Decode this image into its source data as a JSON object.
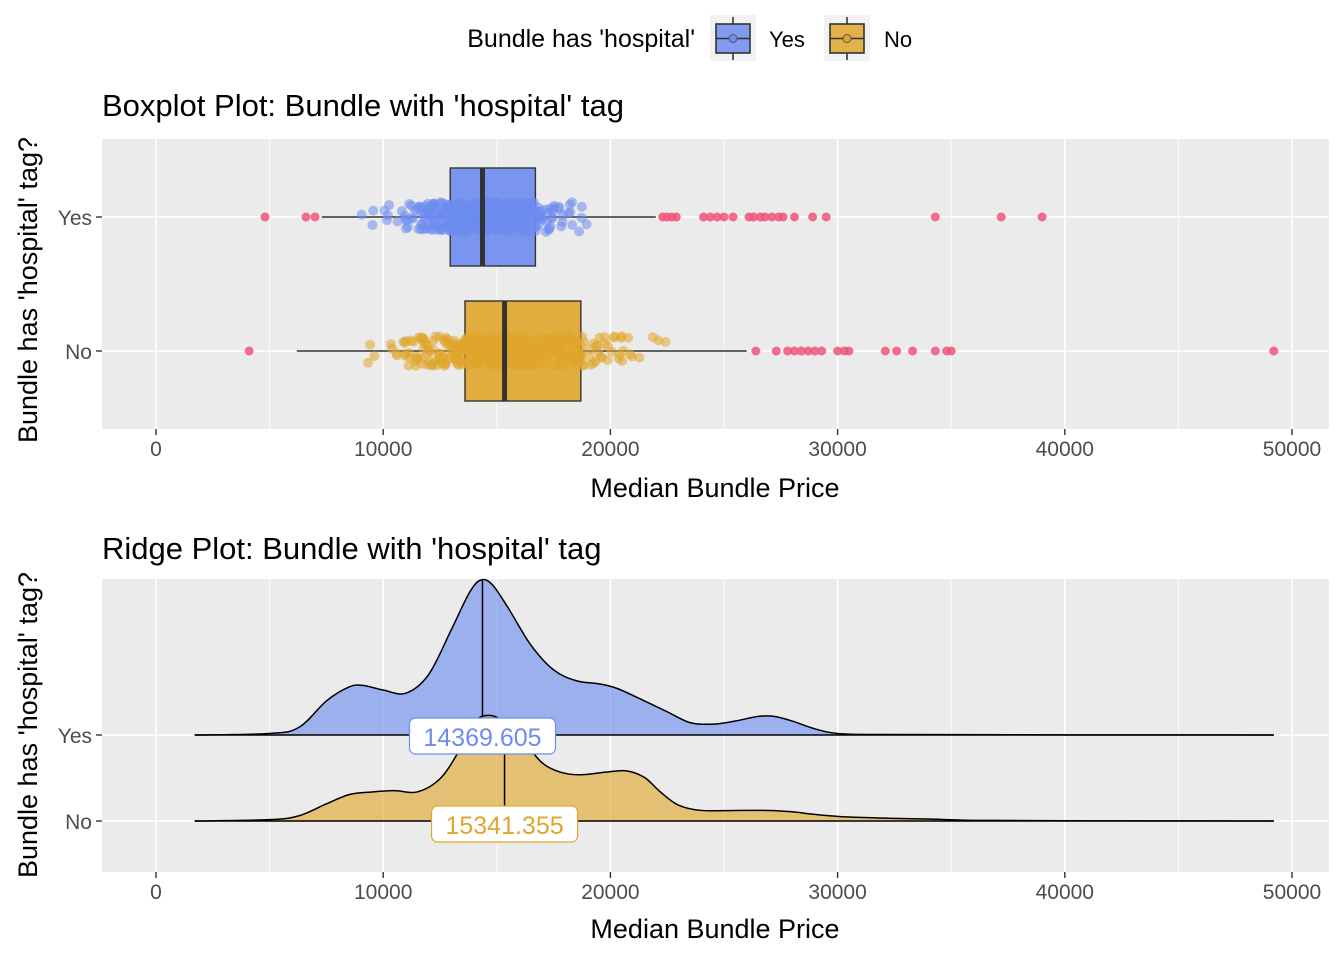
{
  "legend": {
    "title": "Bundle has 'hospital'",
    "items": [
      {
        "label": "Yes",
        "fill": "#6e8cf0",
        "key": "yes"
      },
      {
        "label": "No",
        "fill": "#e0a62c",
        "key": "no"
      }
    ]
  },
  "colors": {
    "yes_fill": "#6e8cf0",
    "no_fill": "#e0a62c",
    "outlier": "#f0557a",
    "panel_bg": "#ebebeb",
    "grid": "#ffffff"
  },
  "chart_data": [
    {
      "type": "boxplot",
      "title": "Boxplot Plot: Bundle with 'hospital' tag",
      "xlabel": "Median Bundle Price",
      "ylabel": "Bundle has 'hospital' tag?",
      "xlim": [
        -2300,
        51500
      ],
      "x_ticks": [
        0,
        10000,
        20000,
        30000,
        40000,
        50000
      ],
      "x_tick_labels": [
        "0",
        "10000",
        "20000",
        "30000",
        "40000",
        "50000"
      ],
      "categories": [
        "Yes",
        "No"
      ],
      "grid": true,
      "series": [
        {
          "name": "Yes",
          "whisker_low": 7300,
          "q1": 12950,
          "median": 14369.605,
          "q3": 16700,
          "whisker_high": 22000,
          "jitter_range": [
            8600,
            20200
          ],
          "outliers": [
            4800,
            6600,
            7000,
            22300,
            22500,
            22700,
            22900,
            24100,
            24400,
            24700,
            25000,
            25400,
            26100,
            26300,
            26600,
            26800,
            27100,
            27400,
            27600,
            28100,
            28900,
            29500,
            34300,
            37200,
            39000
          ]
        },
        {
          "name": "No",
          "whisker_low": 6200,
          "q1": 13600,
          "median": 15341.355,
          "q3": 18700,
          "whisker_high": 26000,
          "jitter_range": [
            7800,
            22900
          ],
          "outliers": [
            4100,
            26400,
            27300,
            27800,
            28100,
            28400,
            28700,
            29000,
            29300,
            30000,
            30300,
            30500,
            32100,
            32600,
            33300,
            34300,
            34800,
            35000,
            49200
          ]
        }
      ]
    },
    {
      "type": "ridge",
      "title": "Ridge Plot: Bundle with 'hospital' tag",
      "xlabel": "Median Bundle Price",
      "ylabel": "Bundle has 'hospital' tag?",
      "xlim": [
        -2300,
        51500
      ],
      "x_ticks": [
        0,
        10000,
        20000,
        30000,
        40000,
        50000
      ],
      "x_tick_labels": [
        "0",
        "10000",
        "20000",
        "30000",
        "40000",
        "50000"
      ],
      "categories": [
        "Yes",
        "No"
      ],
      "grid": true,
      "series": [
        {
          "name": "Yes",
          "median": 14369.605,
          "median_label": "14369.605",
          "density": [
            [
              1700,
              0
            ],
            [
              5000,
              0.01
            ],
            [
              6300,
              0.05
            ],
            [
              7500,
              0.22
            ],
            [
              8500,
              0.31
            ],
            [
              9100,
              0.32
            ],
            [
              10000,
              0.29
            ],
            [
              11000,
              0.27
            ],
            [
              12000,
              0.39
            ],
            [
              13000,
              0.68
            ],
            [
              13800,
              0.92
            ],
            [
              14300,
              1.0
            ],
            [
              14800,
              0.97
            ],
            [
              15500,
              0.82
            ],
            [
              16500,
              0.58
            ],
            [
              17500,
              0.42
            ],
            [
              18500,
              0.35
            ],
            [
              19500,
              0.33
            ],
            [
              20300,
              0.3
            ],
            [
              21500,
              0.22
            ],
            [
              22500,
              0.15
            ],
            [
              23500,
              0.08
            ],
            [
              24500,
              0.07
            ],
            [
              25500,
              0.09
            ],
            [
              26500,
              0.12
            ],
            [
              27200,
              0.12
            ],
            [
              28000,
              0.09
            ],
            [
              29000,
              0.04
            ],
            [
              30000,
              0.01
            ],
            [
              32000,
              0.003
            ],
            [
              40000,
              0.001
            ],
            [
              49200,
              0
            ]
          ]
        },
        {
          "name": "No",
          "median": 15341.355,
          "median_label": "15341.355",
          "density": [
            [
              1700,
              0
            ],
            [
              5000,
              0.01
            ],
            [
              6300,
              0.04
            ],
            [
              7500,
              0.13
            ],
            [
              8500,
              0.2
            ],
            [
              9500,
              0.22
            ],
            [
              10500,
              0.23
            ],
            [
              11500,
              0.22
            ],
            [
              12500,
              0.32
            ],
            [
              13300,
              0.52
            ],
            [
              14000,
              0.75
            ],
            [
              14700,
              0.8
            ],
            [
              15400,
              0.74
            ],
            [
              16200,
              0.6
            ],
            [
              17000,
              0.44
            ],
            [
              17800,
              0.37
            ],
            [
              18700,
              0.35
            ],
            [
              19800,
              0.37
            ],
            [
              20700,
              0.38
            ],
            [
              21500,
              0.33
            ],
            [
              22200,
              0.22
            ],
            [
              23000,
              0.12
            ],
            [
              24000,
              0.08
            ],
            [
              25500,
              0.08
            ],
            [
              27000,
              0.08
            ],
            [
              28000,
              0.07
            ],
            [
              29000,
              0.05
            ],
            [
              30500,
              0.03
            ],
            [
              32500,
              0.02
            ],
            [
              34000,
              0.015
            ],
            [
              36000,
              0.005
            ],
            [
              40000,
              0.002
            ],
            [
              49200,
              0
            ]
          ]
        }
      ]
    }
  ]
}
